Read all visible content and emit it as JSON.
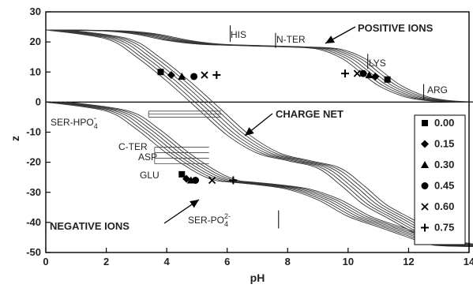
{
  "chart_data": {
    "type": "line",
    "xlabel": "pH",
    "ylabel": "z",
    "xlim": [
      0,
      14
    ],
    "ylim": [
      -50,
      30
    ],
    "xticks": [
      0,
      2,
      4,
      6,
      8,
      10,
      12,
      14
    ],
    "yticks": [
      30,
      20,
      10,
      0,
      -10,
      -20,
      -30,
      -40,
      -50
    ],
    "grid": false,
    "legend_position": "right",
    "series": [
      {
        "name": "0.00",
        "marker": "square",
        "shift": 0.0
      },
      {
        "name": "0.15",
        "marker": "diamond",
        "shift": 0.15
      },
      {
        "name": "0.30",
        "marker": "triangle",
        "shift": 0.3
      },
      {
        "name": "0.45",
        "marker": "circle",
        "shift": 0.45
      },
      {
        "name": "0.60",
        "marker": "x",
        "shift": 0.6
      },
      {
        "name": "0.75",
        "marker": "plus",
        "shift": 0.75
      }
    ],
    "positive_curve_points": [
      [
        0,
        24
      ],
      [
        2,
        23.6
      ],
      [
        3,
        22.5
      ],
      [
        4,
        20.5
      ],
      [
        5,
        19.3
      ],
      [
        6,
        18.9
      ],
      [
        7,
        18.6
      ],
      [
        8,
        18.3
      ],
      [
        9,
        17.6
      ],
      [
        9.8,
        14.5
      ],
      [
        10.4,
        10
      ],
      [
        11,
        5.5
      ],
      [
        11.8,
        2
      ],
      [
        12.5,
        0.6
      ],
      [
        13.3,
        0.1
      ],
      [
        14,
        0
      ]
    ],
    "negative_curve_points": [
      [
        0,
        0
      ],
      [
        2,
        -3
      ],
      [
        3,
        -9
      ],
      [
        4,
        -17
      ],
      [
        5,
        -23.5
      ],
      [
        5.6,
        -26
      ],
      [
        6,
        -26.5
      ],
      [
        7,
        -27.5
      ],
      [
        8,
        -29
      ],
      [
        9,
        -32.5
      ],
      [
        10,
        -38
      ],
      [
        11,
        -41.5
      ],
      [
        12,
        -45
      ],
      [
        12.8,
        -47.5
      ],
      [
        14,
        -48
      ]
    ],
    "net_curve_points": [
      [
        0,
        24
      ],
      [
        2,
        21
      ],
      [
        3,
        15
      ],
      [
        4,
        7
      ],
      [
        5,
        -2
      ],
      [
        6,
        -11
      ],
      [
        7,
        -17
      ],
      [
        8,
        -19.5
      ],
      [
        9,
        -22
      ],
      [
        9.8,
        -28
      ],
      [
        10.5,
        -34
      ],
      [
        11.3,
        -38.5
      ],
      [
        12.3,
        -44
      ],
      [
        13,
        -46.5
      ],
      [
        14,
        -48
      ]
    ],
    "positive_markers_x": [
      3.8,
      4.15,
      4.5,
      4.9,
      5.25,
      5.65
    ],
    "positive_markers_y": [
      10,
      9,
      8.5,
      8.5,
      9,
      9
    ],
    "positive_markers_x2": [
      11.3,
      10.9,
      10.7,
      10.5,
      10.3,
      9.9
    ],
    "positive_markers_y2": [
      7.5,
      8.5,
      9,
      9.5,
      9.5,
      9.5
    ],
    "negative_markers_x": [
      4.5,
      4.65,
      4.8,
      4.95,
      5.5,
      6.2
    ],
    "negative_markers_y": [
      -24,
      -25.5,
      -26,
      -26,
      -26,
      -26
    ],
    "annotations": {
      "his": "HIS",
      "nter": "N-TER",
      "lys": "LYS",
      "arg": "ARG",
      "positive_ions": "POSITIVE  IONS",
      "charge_net": "CHARGE  NET",
      "ser_hpo4": "SER-HPO",
      "ser_hpo4_sup": "-",
      "ser_hpo4_sub": "4",
      "cter": "C-TER",
      "asp": "ASP",
      "glu": "GLU",
      "negative_ions": "NEGATIVE  IONS",
      "ser_po4": "SER-PO",
      "ser_po4_sup": "2-",
      "ser_po4_sub": "4"
    }
  }
}
